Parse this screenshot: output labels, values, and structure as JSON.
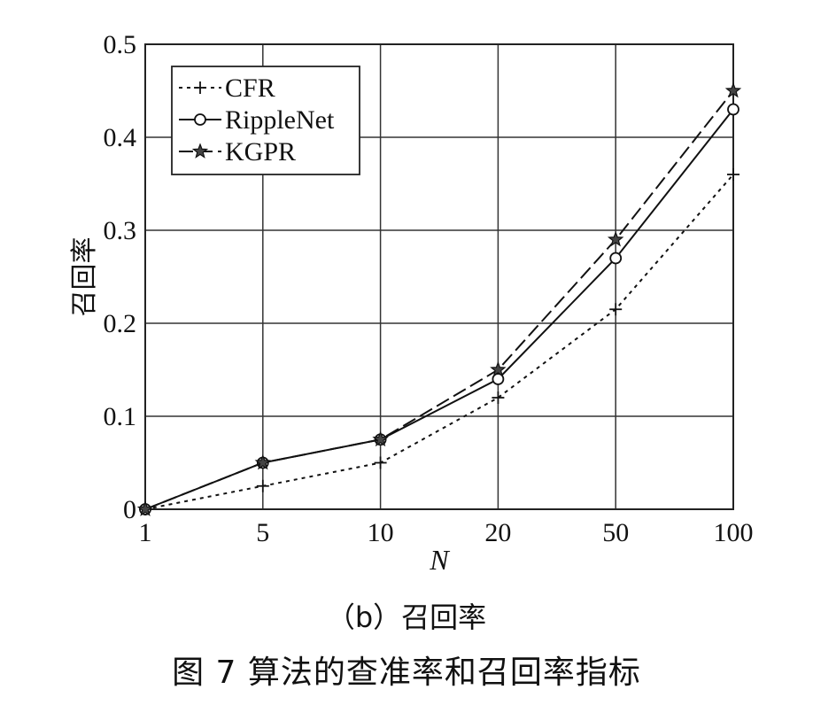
{
  "chart_data": {
    "type": "line",
    "categories": [
      "1",
      "5",
      "10",
      "20",
      "50",
      "100"
    ],
    "xlabel": "N",
    "ylabel": "召回率",
    "ylim": [
      0,
      0.5
    ],
    "yticks": [
      "0",
      "0.1",
      "0.2",
      "0.3",
      "0.4",
      "0.5"
    ],
    "grid": true,
    "legend": "top-left",
    "series": [
      {
        "name": "CFR",
        "marker": "plus",
        "dash": "dotted",
        "values": [
          0.0,
          0.025,
          0.05,
          0.12,
          0.215,
          0.36
        ]
      },
      {
        "name": "RippleNet",
        "marker": "circle",
        "dash": "solid",
        "values": [
          0.0,
          0.05,
          0.075,
          0.14,
          0.27,
          0.43
        ]
      },
      {
        "name": "KGPR",
        "marker": "star",
        "dash": "dashed",
        "values": [
          0.0,
          0.05,
          0.075,
          0.15,
          0.29,
          0.45
        ]
      }
    ]
  },
  "captions": {
    "sub": "（b）召回率",
    "figure": "图 7   算法的查准率和召回率指标"
  }
}
